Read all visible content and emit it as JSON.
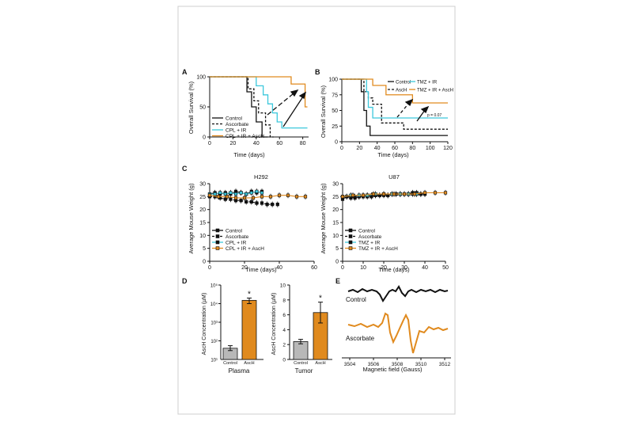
{
  "colors": {
    "black": "#111111",
    "cyan": "#3cc8dc",
    "orange": "#e08a1e",
    "gray": "#b8b8b8",
    "frame": "#cfcfcf"
  },
  "panels": {
    "A": {
      "letter": "A",
      "ylabel": "Overall Survival (%)",
      "xlabel": "Time (days)",
      "xticks": [
        "0",
        "20",
        "40",
        "60",
        "80"
      ],
      "yticks": [
        "0",
        "50",
        "100"
      ],
      "legend": [
        "Control",
        "Ascorbate",
        "CPL + IR",
        "CPL + IR + AscH"
      ]
    },
    "B": {
      "letter": "B",
      "ylabel": "Overall Survival (%)",
      "xlabel": "Time (days)",
      "xticks": [
        "0",
        "20",
        "40",
        "60",
        "80",
        "100",
        "120"
      ],
      "yticks": [
        "0",
        "25",
        "50",
        "75",
        "100"
      ],
      "legend": [
        "Control",
        "AscH",
        "TMZ + IR",
        "TMZ + IR + AscH"
      ],
      "pvalue": "p = 0.07"
    },
    "C1": {
      "letter": "C",
      "title": "H292",
      "ylabel": "Average Mouse Weight (g)",
      "xlabel": "Time (days)",
      "xticks": [
        "0",
        "20",
        "40",
        "60"
      ],
      "yticks": [
        "0",
        "5",
        "10",
        "15",
        "20",
        "25",
        "30"
      ],
      "legend": [
        "Control",
        "Ascorbate",
        "CPL + IR",
        "CPL + IR + AscH"
      ]
    },
    "C2": {
      "title": "U87",
      "ylabel": "Average Mouse Weight (g)",
      "xlabel": "Time (days)",
      "xticks": [
        "0",
        "10",
        "20",
        "30",
        "40",
        "50"
      ],
      "yticks": [
        "0",
        "5",
        "10",
        "15",
        "20",
        "25",
        "30"
      ],
      "legend": [
        "Control",
        "Ascorbate",
        "TMZ + IR",
        "TMZ + IR + AscH"
      ]
    },
    "D1": {
      "letter": "D",
      "ylabel": "AscH Concentration (µM)",
      "caption": "Plasma",
      "categories": [
        "Control",
        "AscH"
      ],
      "yticks": [
        "10²",
        "10³",
        "10⁴",
        "10⁵"
      ]
    },
    "D2": {
      "ylabel": "AscH Concentration (µM)",
      "caption": "Tumor",
      "categories": [
        "Control",
        "AscH"
      ],
      "yticks": [
        "0",
        "2",
        "4",
        "6",
        "8",
        "10"
      ]
    },
    "E": {
      "letter": "E",
      "labels": [
        "Control",
        "Ascorbate"
      ],
      "xlabel": "Magnetic field (Gauss)",
      "xticks": [
        "3504",
        "3506",
        "3508",
        "3510",
        "3512"
      ]
    }
  },
  "star": "*",
  "chart_data": [
    {
      "panel": "A",
      "type": "line",
      "xlabel": "Time (days)",
      "ylabel": "Overall Survival (%)",
      "xlim": [
        0,
        85
      ],
      "ylim": [
        0,
        100
      ],
      "series": [
        {
          "name": "Control",
          "x": [
            0,
            30,
            32,
            36,
            40,
            45,
            50
          ],
          "y": [
            100,
            100,
            75,
            50,
            25,
            0,
            0
          ]
        },
        {
          "name": "Ascorbate",
          "x": [
            0,
            28,
            33,
            38,
            42,
            48,
            52,
            55
          ],
          "y": [
            100,
            100,
            80,
            60,
            40,
            20,
            0,
            0
          ]
        },
        {
          "name": "CPL + IR",
          "x": [
            0,
            35,
            40,
            46,
            50,
            54,
            58,
            62,
            75,
            84
          ],
          "y": [
            100,
            100,
            85,
            70,
            55,
            40,
            25,
            15,
            15,
            15
          ]
        },
        {
          "name": "CPL + IR + AscH",
          "x": [
            0,
            48,
            62,
            70,
            78,
            82,
            84
          ],
          "y": [
            100,
            100,
            100,
            88,
            88,
            50,
            50
          ]
        }
      ]
    },
    {
      "panel": "B",
      "type": "line",
      "xlabel": "Time (days)",
      "ylabel": "Overall Survival (%)",
      "xlim": [
        0,
        120
      ],
      "ylim": [
        0,
        100
      ],
      "series": [
        {
          "name": "Control",
          "x": [
            0,
            18,
            22,
            25,
            28,
            32,
            120
          ],
          "y": [
            100,
            100,
            80,
            50,
            25,
            10,
            10
          ]
        },
        {
          "name": "AscH",
          "x": [
            0,
            20,
            25,
            30,
            35,
            45,
            60,
            70,
            120
          ],
          "y": [
            100,
            100,
            80,
            70,
            60,
            30,
            30,
            20,
            20
          ]
        },
        {
          "name": "TMZ + IR",
          "x": [
            0,
            25,
            28,
            30,
            35,
            120
          ],
          "y": [
            100,
            100,
            80,
            55,
            38,
            38
          ]
        },
        {
          "name": "TMZ + IR + AscH",
          "x": [
            0,
            28,
            35,
            50,
            65,
            80,
            120
          ],
          "y": [
            100,
            100,
            90,
            75,
            75,
            62,
            62
          ]
        }
      ]
    },
    {
      "panel": "C",
      "title": "H292",
      "type": "line",
      "xlabel": "Time (days)",
      "ylabel": "Average Mouse Weight (g)",
      "xlim": [
        0,
        60
      ],
      "ylim": [
        0,
        30
      ],
      "series": [
        {
          "name": "Control",
          "x": [
            0,
            3,
            6,
            9,
            12,
            15,
            18,
            21,
            24,
            27,
            30
          ],
          "y": [
            26,
            26.5,
            26,
            26.5,
            26,
            27,
            26.5,
            26,
            27,
            26.5,
            27
          ]
        },
        {
          "name": "Ascorbate",
          "x": [
            0,
            3,
            6,
            9,
            12,
            15,
            18,
            21,
            24,
            27,
            30,
            33,
            36,
            39
          ],
          "y": [
            25,
            25,
            24.5,
            24,
            24,
            23.5,
            23.5,
            23,
            23,
            22.5,
            22.5,
            22,
            22,
            22
          ]
        },
        {
          "name": "CPL + IR",
          "x": [
            0,
            3,
            6,
            9,
            12,
            15,
            18,
            21,
            24,
            27,
            30
          ],
          "y": [
            26,
            26,
            26.5,
            26,
            26.5,
            26,
            26.5,
            26,
            26.5,
            27,
            26.5
          ]
        },
        {
          "name": "CPL + IR + AscH",
          "x": [
            0,
            5,
            10,
            15,
            20,
            25,
            30,
            35,
            40,
            45,
            50,
            55
          ],
          "y": [
            25.5,
            25,
            25,
            24.5,
            24.5,
            24.5,
            25,
            25,
            25.5,
            25.5,
            25,
            25
          ]
        }
      ]
    },
    {
      "panel": "C",
      "title": "U87",
      "type": "line",
      "xlabel": "Time (days)",
      "ylabel": "Average Mouse Weight (g)",
      "xlim": [
        0,
        50
      ],
      "ylim": [
        0,
        30
      ],
      "series": [
        {
          "name": "Control",
          "x": [
            0,
            2,
            4,
            6,
            8,
            10,
            12,
            14,
            16,
            18,
            20,
            22,
            24,
            26,
            28,
            30,
            32,
            34,
            36,
            38,
            40
          ],
          "y": [
            24,
            25,
            25,
            24.5,
            25,
            25,
            25.5,
            25,
            25.5,
            25.5,
            26,
            25.5,
            26,
            26,
            26,
            26,
            26,
            26,
            26,
            26,
            26
          ]
        },
        {
          "name": "Ascorbate",
          "x": [
            0,
            2,
            4,
            6,
            8,
            10,
            12,
            14,
            16,
            18,
            20,
            22,
            24,
            26,
            28,
            30,
            32,
            34,
            36,
            38,
            40
          ],
          "y": [
            25,
            25,
            24.5,
            25,
            25,
            25.5,
            25,
            25.5,
            25.5,
            25.5,
            25.5,
            25.5,
            26,
            26,
            26,
            26,
            26,
            26.5,
            26.5,
            26,
            26
          ]
        },
        {
          "name": "TMZ + IR",
          "x": [
            0,
            4,
            8,
            12,
            16,
            20,
            24,
            28,
            32,
            36
          ],
          "y": [
            25,
            25.5,
            25.5,
            25.5,
            26,
            26,
            26,
            26,
            26,
            26
          ]
        },
        {
          "name": "TMZ + IR + AscH",
          "x": [
            0,
            5,
            10,
            15,
            20,
            25,
            30,
            35,
            40,
            45,
            50
          ],
          "y": [
            25,
            25.5,
            25.5,
            26,
            26,
            26,
            26,
            26,
            26.5,
            26.5,
            26.5
          ]
        }
      ]
    },
    {
      "panel": "D",
      "caption": "Plasma",
      "type": "bar",
      "ylabel": "AscH Concentration (µM)",
      "yscale": "log",
      "ylim": [
        1,
        100000
      ],
      "categories": [
        "Control",
        "AscH"
      ],
      "values": [
        40,
        15000
      ],
      "errors": [
        [
          30,
          55
        ],
        [
          10000,
          20000
        ]
      ]
    },
    {
      "panel": "D",
      "caption": "Tumor",
      "type": "bar",
      "ylabel": "AscH Concentration (µM)",
      "ylim": [
        0,
        10
      ],
      "categories": [
        "Control",
        "AscH"
      ],
      "values": [
        2.4,
        6.3
      ],
      "errors": [
        0.3,
        1.4
      ]
    }
  ]
}
